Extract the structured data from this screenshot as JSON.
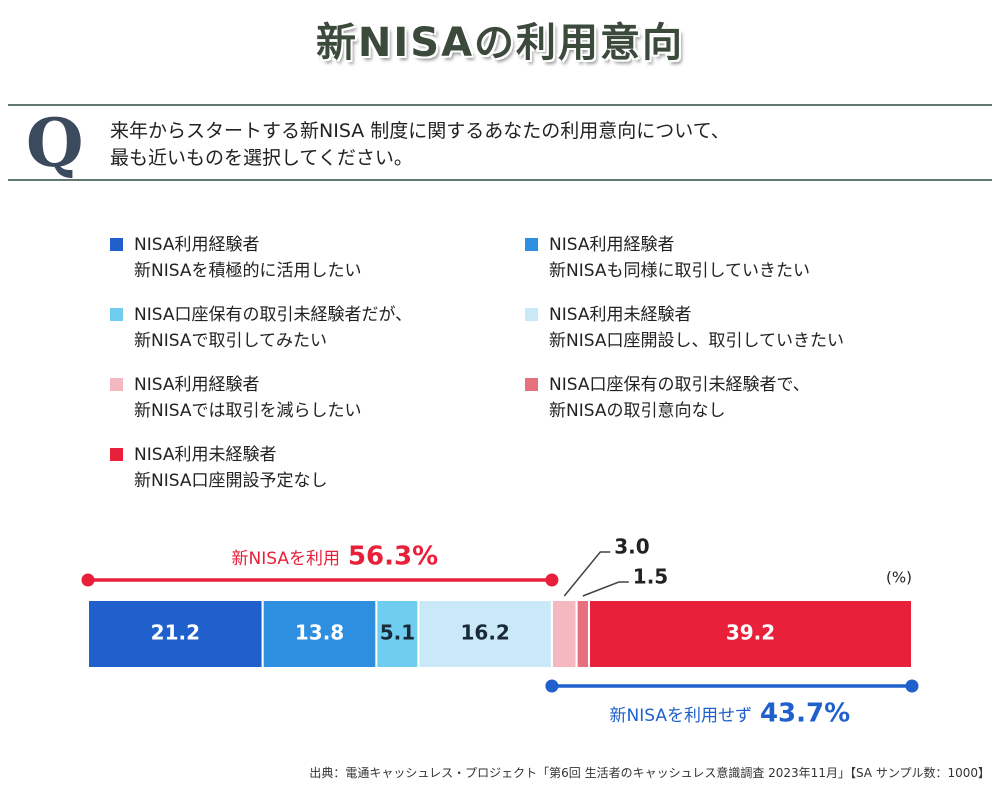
{
  "chart_data": {
    "type": "stacked-bar",
    "title": "新NISAの利用意向",
    "question_mark": "Q",
    "question": "来年からスタートする新NISA 制度に関するあなたの利用意向について、\n最も近いものを選択してください。",
    "unit": "(%)",
    "xlim": [
      0,
      100
    ],
    "series": [
      {
        "name": "NISA利用経験者\n新NISAを積極的に活用したい",
        "color": "#1f60cc",
        "values": [
          21.2
        ]
      },
      {
        "name": "NISA利用経験者\n新NISAも同様に取引していきたい",
        "color": "#2e8fe0",
        "values": [
          13.8
        ]
      },
      {
        "name": "NISA口座保有の取引未経験者だが、\n新NISAで取引してみたい",
        "color": "#6fcdf0",
        "values": [
          5.1
        ]
      },
      {
        "name": "NISA利用未経験者\n新NISA口座開設し、取引していきたい",
        "color": "#c9e8f8",
        "values": [
          16.2
        ]
      },
      {
        "name": "NISA利用経験者\n新NISAでは取引を減らしたい",
        "color": "#f6b8c0",
        "values": [
          3.0
        ],
        "value_labels": [
          "3.0"
        ]
      },
      {
        "name": "NISA口座保有の取引未経験者で、\n新NISAの取引意向なし",
        "color": "#e8707e",
        "values": [
          1.5
        ]
      },
      {
        "name": "NISA利用未経験者\n新NISA口座開設予定なし",
        "color": "#e8203a",
        "values": [
          39.2
        ]
      }
    ],
    "groups": [
      {
        "label": "新NISAを利用",
        "value": 56.3,
        "value_label": "56.3%",
        "color": "#e8203a"
      },
      {
        "label": "新NISAを利用せず",
        "value": 43.7,
        "value_label": "43.7%",
        "color": "#1f60cc"
      }
    ],
    "source": "出典：電通キャッシュレス・プロジェクト「第6回 生活者のキャッシュレス意識調査 2023年11月」【SA サンプル数：1000】"
  }
}
